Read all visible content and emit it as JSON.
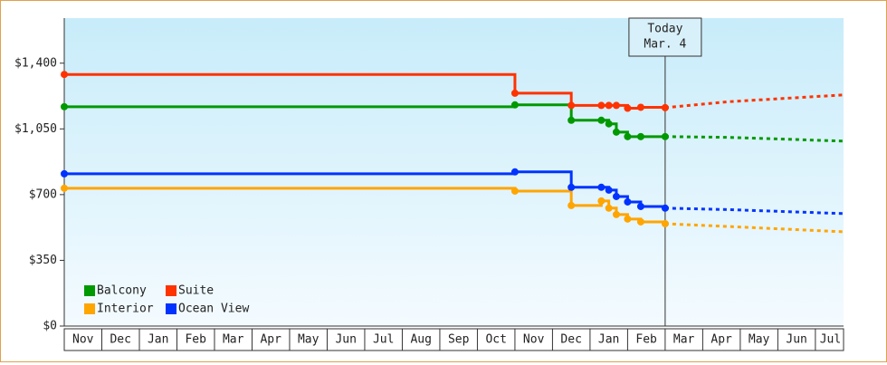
{
  "chart_data": {
    "type": "step-line",
    "today_label": "Today",
    "today_date": "Mar. 4",
    "today_x": 16.0,
    "xlim": [
      0,
      20.75
    ],
    "xticks": [
      {
        "value": 0.5,
        "label": "Nov"
      },
      {
        "value": 1.5,
        "label": "Dec"
      },
      {
        "value": 2.5,
        "label": "Jan"
      },
      {
        "value": 3.5,
        "label": "Feb"
      },
      {
        "value": 4.5,
        "label": "Mar"
      },
      {
        "value": 5.5,
        "label": "Apr"
      },
      {
        "value": 6.5,
        "label": "May"
      },
      {
        "value": 7.5,
        "label": "Jun"
      },
      {
        "value": 8.5,
        "label": "Jul"
      },
      {
        "value": 9.5,
        "label": "Aug"
      },
      {
        "value": 10.5,
        "label": "Sep"
      },
      {
        "value": 11.5,
        "label": "Oct"
      },
      {
        "value": 12.5,
        "label": "Nov"
      },
      {
        "value": 13.5,
        "label": "Dec"
      },
      {
        "value": 14.5,
        "label": "Jan"
      },
      {
        "value": 15.5,
        "label": "Feb"
      },
      {
        "value": 16.5,
        "label": "Mar"
      },
      {
        "value": 17.5,
        "label": "Apr"
      },
      {
        "value": 18.5,
        "label": "May"
      },
      {
        "value": 19.5,
        "label": "Jun"
      },
      {
        "value": 20.4,
        "label": "Jul"
      }
    ],
    "ylim": [
      0,
      1640
    ],
    "yticks": [
      {
        "value": 0,
        "label": "$0"
      },
      {
        "value": 350,
        "label": "$350"
      },
      {
        "value": 700,
        "label": "$700"
      },
      {
        "value": 1050,
        "label": "$1,050"
      },
      {
        "value": 1400,
        "label": "$1,400"
      }
    ],
    "x": [
      0,
      12.0,
      13.5,
      14.3,
      14.5,
      14.7,
      15.0,
      15.35,
      16.0
    ],
    "forecast_x": [
      16.0,
      17.7,
      20.75
    ],
    "series": [
      {
        "name": "Balcony",
        "color": "#009900",
        "values": [
          1168,
          1178,
          1096,
          1096,
          1077,
          1033,
          1009,
          1009,
          1009
        ],
        "forecast": [
          1009,
          1005,
          985
        ]
      },
      {
        "name": "Suite",
        "color": "#ff3300",
        "values": [
          1340,
          1240,
          1175,
          1175,
          1175,
          1175,
          1160,
          1165,
          1163
        ],
        "forecast": [
          1163,
          1195,
          1231
        ]
      },
      {
        "name": "Interior",
        "color": "#ffa500",
        "values": [
          734,
          719,
          642,
          666,
          628,
          594,
          570,
          555,
          545
        ],
        "forecast": [
          545,
          530,
          502
        ]
      },
      {
        "name": "Ocean View",
        "color": "#0033ff",
        "values": [
          811,
          821,
          739,
          739,
          724,
          690,
          661,
          637,
          628
        ],
        "forecast": [
          628,
          620,
          599
        ]
      }
    ]
  }
}
